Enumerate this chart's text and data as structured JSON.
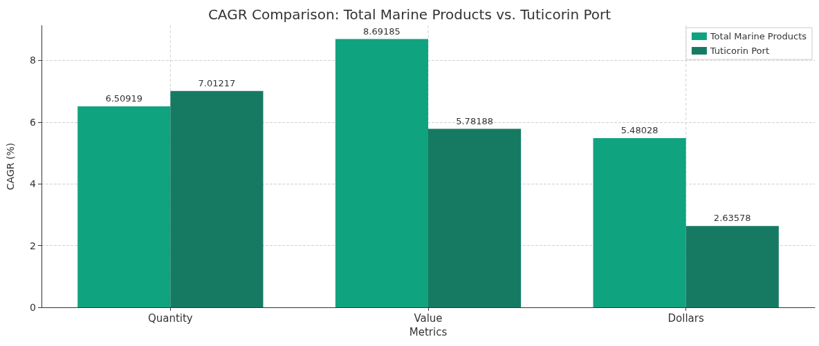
{
  "chart_data": {
    "type": "bar",
    "title": "CAGR Comparison: Total Marine Products vs. Tuticorin Port",
    "xlabel": "Metrics",
    "ylabel": "CAGR (%)",
    "categories": [
      "Quantity",
      "Value",
      "Dollars"
    ],
    "series": [
      {
        "name": "Total Marine Products",
        "color": "#10a37f",
        "values": [
          6.50919,
          8.69185,
          5.48028
        ]
      },
      {
        "name": "Tuticorin Port",
        "color": "#167a62",
        "values": [
          7.01217,
          5.78188,
          2.63578
        ]
      }
    ],
    "ylim": [
      0,
      9.13
    ],
    "yticks": [
      0,
      2,
      4,
      6,
      8
    ],
    "grid": true,
    "legend": "top right",
    "data_labels": true
  }
}
